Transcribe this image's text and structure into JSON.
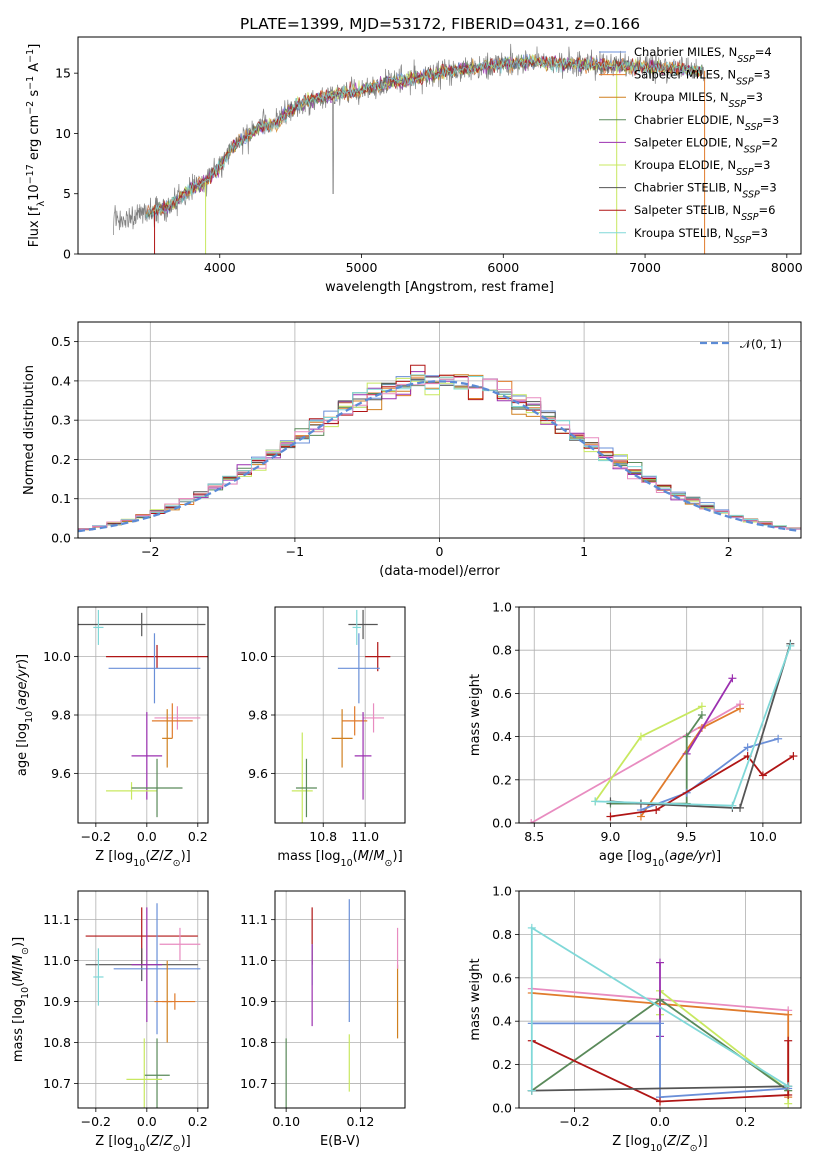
{
  "colors": {
    "Chabrier MILES": "#6a8fd8",
    "Salpeter MILES": "#e07b2c",
    "Kroupa MILES": "#d08020",
    "Chabrier ELODIE": "#5a8a5a",
    "Salpeter ELODIE": "#9b30b0",
    "Kroupa ELODIE": "#c8e860",
    "Chabrier STELIB": "#555555",
    "Salpeter STELIB": "#b01515",
    "Kroupa STELIB": "#80d8d8",
    "pink": "#e88cc0",
    "spectrum": "#808080",
    "normal": "#5b8bd6"
  },
  "chart_data": [
    {
      "id": "spectrum",
      "type": "line",
      "title": "PLATE=1399, MJD=53172, FIBERID=0431, z=0.166",
      "xlabel": "wavelength [Angstrom, rest frame]",
      "ylabel": "Flux [fλ10⁻¹⁷ erg cm⁻² s⁻¹ A⁻¹]",
      "xlim": [
        3000,
        8100
      ],
      "ylim": [
        0,
        18
      ],
      "xticks": [
        4000,
        5000,
        6000,
        7000,
        8000
      ],
      "yticks": [
        0,
        5,
        10,
        15
      ],
      "grid": false,
      "legend_position": "top-right",
      "continuum": {
        "x": [
          3250,
          3500,
          3600,
          3700,
          3800,
          3900,
          4000,
          4100,
          4200,
          4300,
          4400,
          4500,
          4600,
          4800,
          5000,
          5200,
          5400,
          5600,
          5800,
          6000,
          6200,
          6400,
          6600,
          6800,
          7000,
          7200,
          7400
        ],
        "y": [
          2.8,
          3.4,
          3.8,
          4.5,
          5.4,
          6.0,
          7.2,
          9.0,
          9.8,
          10.6,
          10.8,
          12.0,
          12.6,
          13.2,
          13.6,
          14.2,
          14.6,
          15.2,
          15.4,
          15.8,
          15.9,
          15.8,
          15.7,
          15.6,
          15.5,
          15.4,
          15.2
        ]
      },
      "legend": [
        {
          "label": "Chabrier MILES, N",
          "sub": "SSP",
          "suffix": "=4",
          "series": "Chabrier MILES"
        },
        {
          "label": "Salpeter MILES, N",
          "sub": "SSP",
          "suffix": "=3",
          "series": "Salpeter MILES"
        },
        {
          "label": "Kroupa MILES, N",
          "sub": "SSP",
          "suffix": "=3",
          "series": "Kroupa MILES"
        },
        {
          "label": "Chabrier ELODIE, N",
          "sub": "SSP",
          "suffix": "=3",
          "series": "Chabrier ELODIE"
        },
        {
          "label": "Salpeter ELODIE, N",
          "sub": "SSP",
          "suffix": "=2",
          "series": "Salpeter ELODIE"
        },
        {
          "label": "Kroupa ELODIE, N",
          "sub": "SSP",
          "suffix": "=3",
          "series": "Kroupa ELODIE"
        },
        {
          "label": "Chabrier STELIB, N",
          "sub": "SSP",
          "suffix": "=3",
          "series": "Chabrier STELIB"
        },
        {
          "label": "Salpeter STELIB, N",
          "sub": "SSP",
          "suffix": "=6",
          "series": "Salpeter STELIB"
        },
        {
          "label": "Kroupa STELIB, N",
          "sub": "SSP",
          "suffix": "=3",
          "series": "Kroupa STELIB"
        }
      ]
    },
    {
      "id": "residuals",
      "type": "histogram",
      "xlabel": "(data-model)/error",
      "ylabel": "Normed distribution",
      "xlim": [
        -2.5,
        2.5
      ],
      "ylim": [
        0,
        0.55
      ],
      "xticks": [
        -2,
        -1,
        0,
        1,
        2
      ],
      "yticks": [
        0.0,
        0.1,
        0.2,
        0.3,
        0.4,
        0.5
      ],
      "grid": true,
      "bin_width": 0.1,
      "legend_label": "𝒩(0, 1)",
      "legend_position": "top-right"
    },
    {
      "id": "age-vs-Z",
      "type": "errorbar",
      "xlabel": "Z [log₁₀(Z/Z⊙)]",
      "ylabel": "age  [log₁₀(age/yr)]",
      "xlim": [
        -0.27,
        0.24
      ],
      "ylim": [
        9.43,
        10.17
      ],
      "xticks": [
        -0.2,
        0.0,
        0.2
      ],
      "yticks": [
        9.6,
        9.8,
        10.0
      ],
      "grid": true,
      "points": [
        {
          "series": "Chabrier STELIB",
          "x": -0.02,
          "y": 10.11,
          "xerr": 0.25,
          "yerr": 0.04
        },
        {
          "series": "Kroupa STELIB",
          "x": -0.19,
          "y": 10.1,
          "xerr": 0.02,
          "yerr": 0.06
        },
        {
          "series": "Salpeter STELIB",
          "x": 0.04,
          "y": 10.0,
          "xerr": 0.2,
          "yerr": 0.04
        },
        {
          "series": "Chabrier MILES",
          "x": 0.03,
          "y": 9.96,
          "xerr": 0.18,
          "yerr": 0.12
        },
        {
          "series": "pink",
          "x": 0.12,
          "y": 9.79,
          "xerr": 0.09,
          "yerr": 0.04
        },
        {
          "series": "Salpeter MILES",
          "x": 0.1,
          "y": 9.78,
          "xerr": 0.08,
          "yerr": 0.06
        },
        {
          "series": "Kroupa MILES",
          "x": 0.08,
          "y": 9.72,
          "xerr": 0.02,
          "yerr": 0.1
        },
        {
          "series": "Salpeter ELODIE",
          "x": 0.0,
          "y": 9.66,
          "xerr": 0.06,
          "yerr": 0.15
        },
        {
          "series": "Kroupa ELODIE",
          "x": -0.06,
          "y": 9.54,
          "xerr": 0.1,
          "yerr": 0.03
        },
        {
          "series": "Chabrier ELODIE",
          "x": 0.04,
          "y": 9.55,
          "xerr": 0.1,
          "yerr": 0.1
        }
      ]
    },
    {
      "id": "age-vs-mass",
      "type": "errorbar",
      "xlabel": "mass [log₁₀(M/M⊙)]",
      "ylabel": "",
      "xlim": [
        10.57,
        11.19
      ],
      "ylim": [
        9.43,
        10.17
      ],
      "xticks": [
        10.8,
        11.0
      ],
      "yticks": [
        9.6,
        9.8,
        10.0
      ],
      "grid": true,
      "points": [
        {
          "series": "Chabrier STELIB",
          "x": 10.99,
          "y": 10.11,
          "xerr": 0.07,
          "yerr": 0.05
        },
        {
          "series": "Kroupa STELIB",
          "x": 10.96,
          "y": 10.1,
          "xerr": 0.02,
          "yerr": 0.06
        },
        {
          "series": "Salpeter STELIB",
          "x": 11.06,
          "y": 10.0,
          "xerr": 0.06,
          "yerr": 0.05
        },
        {
          "series": "Chabrier MILES",
          "x": 10.97,
          "y": 9.96,
          "xerr": 0.1,
          "yerr": 0.12
        },
        {
          "series": "pink",
          "x": 11.04,
          "y": 9.79,
          "xerr": 0.05,
          "yerr": 0.05
        },
        {
          "series": "Salpeter MILES",
          "x": 10.95,
          "y": 9.78,
          "xerr": 0.06,
          "yerr": 0.05
        },
        {
          "series": "Kroupa MILES",
          "x": 10.89,
          "y": 9.72,
          "xerr": 0.05,
          "yerr": 0.1
        },
        {
          "series": "Salpeter ELODIE",
          "x": 10.99,
          "y": 9.66,
          "xerr": 0.04,
          "yerr": 0.15
        },
        {
          "series": "Kroupa ELODIE",
          "x": 10.7,
          "y": 9.54,
          "xerr": 0.05,
          "yerr": 0.2
        },
        {
          "series": "Chabrier ELODIE",
          "x": 10.72,
          "y": 9.55,
          "xerr": 0.05,
          "yerr": 0.1
        }
      ]
    },
    {
      "id": "weight-vs-age",
      "type": "line",
      "xlabel": "age  [log₁₀(age/yr)]",
      "ylabel": "mass weight",
      "xlim": [
        8.4,
        10.25
      ],
      "ylim": [
        0.0,
        1.0
      ],
      "xticks": [
        8.5,
        9.0,
        9.5,
        10.0
      ],
      "yticks": [
        0.0,
        0.2,
        0.4,
        0.6,
        0.8,
        1.0
      ],
      "grid": true,
      "series": [
        {
          "series": "pink",
          "x": [
            8.48,
            9.85
          ],
          "y": [
            0.0,
            0.55
          ]
        },
        {
          "series": "Salpeter MILES",
          "x": [
            9.2,
            9.6,
            9.85
          ],
          "y": [
            0.03,
            0.44,
            0.53
          ]
        },
        {
          "series": "Kroupa ELODIE",
          "x": [
            8.9,
            9.2,
            9.6
          ],
          "y": [
            0.1,
            0.4,
            0.54
          ]
        },
        {
          "series": "Salpeter ELODIE",
          "x": [
            9.5,
            9.8
          ],
          "y": [
            0.32,
            0.67
          ]
        },
        {
          "series": "Chabrier ELODIE",
          "x": [
            9.0,
            9.5,
            9.5,
            9.6
          ],
          "y": [
            0.09,
            0.09,
            0.4,
            0.5
          ]
        },
        {
          "series": "Chabrier MILES",
          "x": [
            9.2,
            9.5,
            9.9,
            10.1
          ],
          "y": [
            0.06,
            0.14,
            0.35,
            0.39
          ]
        },
        {
          "series": "Salpeter STELIB",
          "x": [
            9.0,
            9.3,
            9.9,
            10.0,
            10.2
          ],
          "y": [
            0.03,
            0.06,
            0.31,
            0.22,
            0.31
          ]
        },
        {
          "series": "Chabrier STELIB",
          "x": [
            9.0,
            9.2,
            9.8,
            9.85,
            10.18
          ],
          "y": [
            0.1,
            0.09,
            0.07,
            0.07,
            0.83
          ]
        },
        {
          "series": "Kroupa STELIB",
          "x": [
            8.9,
            9.8,
            10.18
          ],
          "y": [
            0.1,
            0.08,
            0.82
          ]
        }
      ]
    },
    {
      "id": "mass-vs-Z",
      "type": "errorbar",
      "xlabel": "Z [log₁₀(Z/Z⊙)]",
      "ylabel": "mass [log₁₀(M/M⊙)]",
      "xlim": [
        -0.27,
        0.24
      ],
      "ylim": [
        10.64,
        11.17
      ],
      "xticks": [
        -0.2,
        0.0,
        0.2
      ],
      "yticks": [
        10.7,
        10.8,
        10.9,
        11.0,
        11.1
      ],
      "grid": true,
      "points": [
        {
          "series": "Salpeter STELIB",
          "x": -0.02,
          "y": 11.06,
          "xerr": 0.22,
          "yerr": 0.07
        },
        {
          "series": "pink",
          "x": 0.13,
          "y": 11.04,
          "xerr": 0.08,
          "yerr": 0.04
        },
        {
          "series": "Chabrier STELIB",
          "x": -0.02,
          "y": 10.99,
          "xerr": 0.22,
          "yerr": 0.04
        },
        {
          "series": "Chabrier MILES",
          "x": 0.04,
          "y": 10.98,
          "xerr": 0.17,
          "yerr": 0.16
        },
        {
          "series": "Kroupa STELIB",
          "x": -0.19,
          "y": 10.96,
          "xerr": 0.02,
          "yerr": 0.07
        },
        {
          "series": "Salpeter ELODIE",
          "x": 0.0,
          "y": 10.99,
          "xerr": 0.06,
          "yerr": 0.14
        },
        {
          "series": "Kroupa MILES",
          "x": 0.08,
          "y": 10.9,
          "xerr": 0.02,
          "yerr": 0.1
        },
        {
          "series": "Salpeter MILES",
          "x": 0.11,
          "y": 10.9,
          "xerr": 0.08,
          "yerr": 0.02
        },
        {
          "series": "Chabrier ELODIE",
          "x": 0.04,
          "y": 10.72,
          "xerr": 0.05,
          "yerr": 0.09
        },
        {
          "series": "Kroupa ELODIE",
          "x": -0.01,
          "y": 10.71,
          "xerr": 0.07,
          "yerr": 0.1
        }
      ]
    },
    {
      "id": "mass-vs-EBV",
      "type": "errorbar",
      "xlabel": "E(B-V)",
      "ylabel": "",
      "xlim": [
        0.097,
        0.132
      ],
      "ylim": [
        10.64,
        11.17
      ],
      "xticks": [
        0.1,
        0.12
      ],
      "yticks": [
        10.7,
        10.8,
        10.9,
        11.0,
        11.1
      ],
      "grid": true,
      "points": [
        {
          "series": "Salpeter STELIB",
          "x": 0.107,
          "y": 11.06,
          "xerr": 0,
          "yerr": 0.07
        },
        {
          "series": "Kroupa STELIB",
          "x": 0.107,
          "y": 10.99,
          "xerr": 0,
          "yerr": 0.05
        },
        {
          "series": "Salpeter ELODIE",
          "x": 0.107,
          "y": 10.94,
          "xerr": 0,
          "yerr": 0.1
        },
        {
          "series": "Chabrier MILES",
          "x": 0.117,
          "y": 11.0,
          "xerr": 0,
          "yerr": 0.15
        },
        {
          "series": "Kroupa MILES",
          "x": 0.13,
          "y": 10.9,
          "xerr": 0,
          "yerr": 0.09
        },
        {
          "series": "pink",
          "x": 0.13,
          "y": 11.03,
          "xerr": 0,
          "yerr": 0.05
        },
        {
          "series": "Chabrier ELODIE",
          "x": 0.1,
          "y": 10.72,
          "xerr": 0,
          "yerr": 0.09
        },
        {
          "series": "Kroupa ELODIE",
          "x": 0.117,
          "y": 10.75,
          "xerr": 0,
          "yerr": 0.07
        }
      ]
    },
    {
      "id": "weight-vs-Z",
      "type": "line",
      "xlabel": "Z [log₁₀(Z/Z⊙)]",
      "ylabel": "mass weight",
      "xlim": [
        -0.33,
        0.33
      ],
      "ylim": [
        0.0,
        1.0
      ],
      "xticks": [
        -0.2,
        0.0,
        0.2
      ],
      "yticks": [
        0.0,
        0.2,
        0.4,
        0.6,
        0.8,
        1.0
      ],
      "grid": true,
      "series": [
        {
          "series": "pink",
          "x": [
            -0.3,
            0.3
          ],
          "y": [
            0.55,
            0.45
          ]
        },
        {
          "series": "Salpeter MILES",
          "x": [
            -0.3,
            0.3,
            0.3
          ],
          "y": [
            0.53,
            0.43,
            0.05
          ]
        },
        {
          "series": "Kroupa ELODIE",
          "x": [
            0.0,
            0.0,
            0.3,
            0.3
          ],
          "y": [
            0.43,
            0.54,
            0.08,
            0.02
          ]
        },
        {
          "series": "Salpeter ELODIE",
          "x": [
            0.0,
            0.0
          ],
          "y": [
            0.33,
            0.67
          ]
        },
        {
          "series": "Chabrier ELODIE",
          "x": [
            -0.3,
            0.0,
            0.3
          ],
          "y": [
            0.08,
            0.5,
            0.08
          ]
        },
        {
          "series": "Chabrier MILES",
          "x": [
            -0.3,
            0.0,
            0.0,
            0.3
          ],
          "y": [
            0.39,
            0.39,
            0.05,
            0.09
          ]
        },
        {
          "series": "Salpeter STELIB",
          "x": [
            -0.3,
            0.0,
            0.3,
            0.3
          ],
          "y": [
            0.31,
            0.03,
            0.06,
            0.31
          ]
        },
        {
          "series": "Chabrier STELIB",
          "x": [
            -0.3,
            0.3
          ],
          "y": [
            0.08,
            0.1
          ]
        },
        {
          "series": "Kroupa STELIB",
          "x": [
            -0.3,
            -0.3,
            0.3
          ],
          "y": [
            0.08,
            0.83,
            0.1
          ]
        }
      ]
    }
  ]
}
